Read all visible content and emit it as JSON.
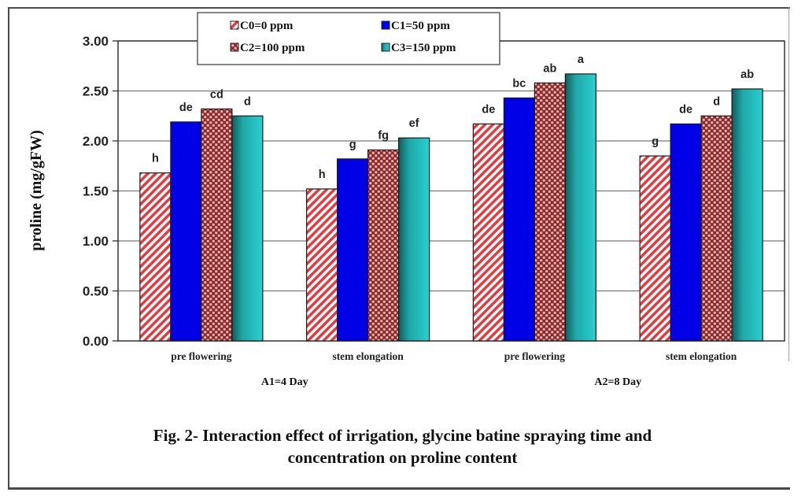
{
  "chart_data": {
    "type": "bar",
    "title": "",
    "xlabel": "",
    "ylabel": "proline (mg/gFW)",
    "ylim": [
      0,
      3
    ],
    "yticks": [
      "0.00",
      "0.50",
      "1.00",
      "1.50",
      "2.00",
      "2.50",
      "3.00"
    ],
    "ytick_values": [
      0,
      0.5,
      1,
      1.5,
      2,
      2.5,
      3
    ],
    "grid": true,
    "legend_position": "top-center",
    "categories": [
      "pre flowering",
      "stem elongation",
      "pre flowering",
      "stem elongation"
    ],
    "groups": [
      {
        "label": "A1=4 Day",
        "categories": [
          0,
          1
        ]
      },
      {
        "label": "A2=8 Day",
        "categories": [
          2,
          3
        ]
      }
    ],
    "series": [
      {
        "name": "C0=0 ppm",
        "color": "#e8383c",
        "pattern": "diagonal-stripes",
        "values": [
          1.68,
          1.52,
          2.17,
          1.85
        ],
        "letters": [
          "h",
          "h",
          "de",
          "g"
        ]
      },
      {
        "name": "C1=50 ppm",
        "color": "#0000e6",
        "pattern": "solid",
        "values": [
          2.19,
          1.82,
          2.43,
          2.17
        ],
        "letters": [
          "de",
          "g",
          "bc",
          "de"
        ]
      },
      {
        "name": "C2=100 ppm",
        "color": "#8b2a2a",
        "pattern": "dots",
        "values": [
          2.32,
          1.91,
          2.58,
          2.25
        ],
        "letters": [
          "cd",
          "fg",
          "ab",
          "d"
        ]
      },
      {
        "name": "C3=150 ppm",
        "color": "#22c4c4",
        "pattern": "gradient",
        "values": [
          2.25,
          2.03,
          2.67,
          2.52
        ],
        "letters": [
          "d",
          "ef",
          "a",
          "ab"
        ]
      }
    ]
  },
  "caption": {
    "line1": "Fig. 2- Interaction effect of irrigation, glycine batine spraying time and",
    "line2": "concentration on proline content"
  }
}
